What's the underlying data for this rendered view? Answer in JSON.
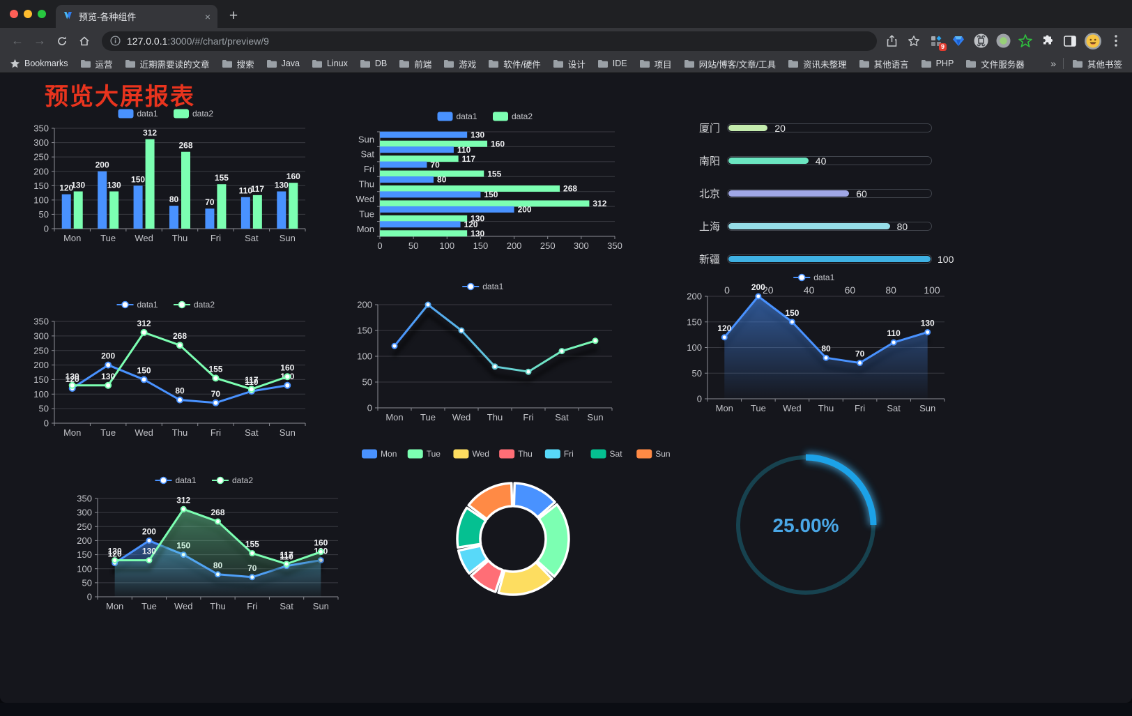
{
  "browser": {
    "tab": {
      "title": "预览-各种组件",
      "close_glyph": "×",
      "new_tab_glyph": "+"
    },
    "url": {
      "host": "127.0.0.1",
      "path": ":3000/#/chart/preview/9"
    },
    "bookmarks_label": "Bookmarks",
    "bookmarks": [
      "运营",
      "近期需要读的文章",
      "搜索",
      "Java",
      "Linux",
      "DB",
      "前端",
      "游戏",
      "软件/硬件",
      "设计",
      "IDE",
      "项目",
      "网站/博客/文章/工具",
      "资讯未整理",
      "其他语言",
      "PHP",
      "文件服务器"
    ],
    "bookmarks_overflow": "»",
    "other_bookmarks": "其他书签",
    "extension_badge": "9"
  },
  "page": {
    "title": "预览大屏报表",
    "title_color": "#e9341e"
  },
  "colors": {
    "background": "#15161c",
    "grid": "#3a3b42",
    "axis": "#8d8f96",
    "tick_label": "#c3c4c9",
    "value_label": "#f0f1f3",
    "legend_text": "#c6c7cc",
    "palette_dark": [
      "#4992ff",
      "#7cffb2",
      "#fddd60",
      "#ff6e76",
      "#58d9f9",
      "#05c091",
      "#ff8a45"
    ]
  },
  "chart_data": [
    {
      "id": "bar-vertical",
      "type": "bar",
      "categories": [
        "Mon",
        "Tue",
        "Wed",
        "Thu",
        "Fri",
        "Sat",
        "Sun"
      ],
      "series": [
        {
          "name": "data1",
          "color": "#4992ff",
          "values": [
            120,
            200,
            150,
            80,
            70,
            110,
            130
          ]
        },
        {
          "name": "data2",
          "color": "#7cffb2",
          "values": [
            130,
            130,
            312,
            268,
            155,
            117,
            160
          ]
        }
      ],
      "ylim": [
        0,
        350
      ],
      "ystep": 50,
      "labels": true,
      "legend_position": "top",
      "grid": true
    },
    {
      "id": "bar-horizontal",
      "type": "bar",
      "orientation": "horizontal",
      "categories": [
        "Mon",
        "Tue",
        "Wed",
        "Thu",
        "Fri",
        "Sat",
        "Sun"
      ],
      "categories_top_to_bottom": [
        "Sun",
        "Sat",
        "Fri",
        "Thu",
        "Wed",
        "Tue",
        "Mon"
      ],
      "series": [
        {
          "name": "data1",
          "color": "#4992ff",
          "values": [
            120,
            200,
            150,
            80,
            70,
            110,
            130
          ]
        },
        {
          "name": "data2",
          "color": "#7cffb2",
          "values": [
            130,
            130,
            312,
            268,
            155,
            117,
            160
          ]
        }
      ],
      "xlim": [
        0,
        350
      ],
      "xstep": 50,
      "labels": true,
      "legend_position": "top",
      "grid": true
    },
    {
      "id": "progress",
      "type": "bar",
      "subtype": "progress-list",
      "items": [
        {
          "label": "厦门",
          "value": 20,
          "color": "#c4ebad"
        },
        {
          "label": "南阳",
          "value": 40,
          "color": "#6be6c1"
        },
        {
          "label": "北京",
          "value": 60,
          "color": "#a0a7e6"
        },
        {
          "label": "上海",
          "value": 80,
          "color": "#96dee8"
        },
        {
          "label": "新疆",
          "value": 100,
          "color": "#3fb1e3"
        }
      ],
      "xaxis_ticks": [
        0,
        20,
        40,
        60,
        80,
        100
      ],
      "max": 100
    },
    {
      "id": "line-two",
      "type": "line",
      "categories": [
        "Mon",
        "Tue",
        "Wed",
        "Thu",
        "Fri",
        "Sat",
        "Sun"
      ],
      "series": [
        {
          "name": "data1",
          "color": "#4992ff",
          "values": [
            120,
            200,
            150,
            80,
            70,
            110,
            130
          ]
        },
        {
          "name": "data2",
          "color": "#7cffb2",
          "values": [
            130,
            130,
            312,
            268,
            155,
            117,
            160
          ]
        }
      ],
      "ylim": [
        0,
        350
      ],
      "ystep": 50,
      "labels": true,
      "legend_position": "top",
      "grid": true
    },
    {
      "id": "line-gradient",
      "type": "line",
      "subtype": "gradient-stroke",
      "categories": [
        "Mon",
        "Tue",
        "Wed",
        "Thu",
        "Fri",
        "Sat",
        "Sun"
      ],
      "series": [
        {
          "name": "data1",
          "color_start": "#4992ff",
          "color_end": "#7cffb2",
          "values": [
            120,
            200,
            150,
            80,
            70,
            110,
            130
          ]
        }
      ],
      "ylim": [
        0,
        200
      ],
      "ystep": 50,
      "labels": false,
      "legend_position": "top",
      "grid": true,
      "shadow": true
    },
    {
      "id": "area-single",
      "type": "area",
      "categories": [
        "Mon",
        "Tue",
        "Wed",
        "Thu",
        "Fri",
        "Sat",
        "Sun"
      ],
      "series": [
        {
          "name": "data1",
          "color": "#4992ff",
          "values": [
            120,
            200,
            150,
            80,
            70,
            110,
            130
          ]
        }
      ],
      "ylim": [
        0,
        200
      ],
      "ystep": 50,
      "labels": true,
      "legend_position": "top",
      "grid": true,
      "shadow": true
    },
    {
      "id": "area-two",
      "type": "area",
      "categories": [
        "Mon",
        "Tue",
        "Wed",
        "Thu",
        "Fri",
        "Sat",
        "Sun"
      ],
      "series": [
        {
          "name": "data1",
          "color": "#4992ff",
          "values": [
            120,
            200,
            150,
            80,
            70,
            110,
            130
          ]
        },
        {
          "name": "data2",
          "color": "#7cffb2",
          "values": [
            130,
            130,
            312,
            268,
            155,
            117,
            160
          ]
        }
      ],
      "ylim": [
        0,
        350
      ],
      "ystep": 50,
      "labels": true,
      "legend_position": "top",
      "grid": true,
      "shadow": true
    },
    {
      "id": "donut",
      "type": "pie",
      "subtype": "donut-rounded",
      "categories": [
        "Mon",
        "Tue",
        "Wed",
        "Thu",
        "Fri",
        "Sat",
        "Sun"
      ],
      "values": [
        120,
        200,
        150,
        80,
        70,
        110,
        130
      ],
      "colors": [
        "#4992ff",
        "#7cffb2",
        "#fddd60",
        "#ff6e76",
        "#58d9f9",
        "#05c091",
        "#ff8a45"
      ],
      "legend_position": "top",
      "border_color": "#ffffff"
    },
    {
      "id": "gauge",
      "type": "gauge",
      "subtype": "ring-progress",
      "value": 25,
      "max": 100,
      "text": "25.00%",
      "arc_color": "#1ca2e8",
      "track_color": "#17424f",
      "text_color": "#4aa7e6"
    }
  ]
}
